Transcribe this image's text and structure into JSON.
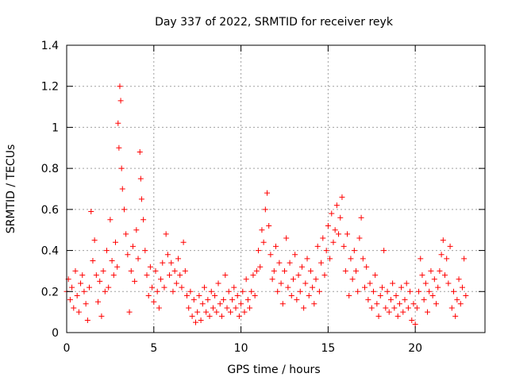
{
  "chart_data": {
    "type": "scatter",
    "title": "Day 337 of 2022, SRMTID for receiver reyk",
    "xlabel": "GPS time / hours",
    "ylabel": "SRMTID / TECUs",
    "xlim": [
      0,
      24
    ],
    "ylim": [
      0,
      1.4
    ],
    "xticks": [
      0,
      5,
      10,
      15,
      20
    ],
    "xtick_labels": [
      "0",
      "5",
      "10",
      "15",
      "20"
    ],
    "yticks": [
      0,
      0.2,
      0.4,
      0.6,
      0.8,
      1,
      1.2,
      1.4
    ],
    "ytick_labels": [
      "0",
      "0.2",
      "0.4",
      "0.6",
      "0.8",
      "1",
      "1.2",
      "1.4"
    ],
    "grid": true,
    "marker": "plus",
    "color": "#ff0000",
    "series": [
      {
        "name": "SRMTID",
        "points": [
          [
            0.0,
            0.2
          ],
          [
            0.1,
            0.26
          ],
          [
            0.2,
            0.16
          ],
          [
            0.3,
            0.22
          ],
          [
            0.4,
            0.12
          ],
          [
            0.5,
            0.3
          ],
          [
            0.6,
            0.18
          ],
          [
            0.7,
            0.1
          ],
          [
            0.8,
            0.24
          ],
          [
            0.9,
            0.28
          ],
          [
            1.0,
            0.2
          ],
          [
            1.1,
            0.14
          ],
          [
            1.2,
            0.06
          ],
          [
            1.3,
            0.22
          ],
          [
            1.4,
            0.59
          ],
          [
            1.5,
            0.35
          ],
          [
            1.6,
            0.45
          ],
          [
            1.7,
            0.28
          ],
          [
            1.8,
            0.15
          ],
          [
            1.9,
            0.25
          ],
          [
            2.0,
            0.08
          ],
          [
            2.1,
            0.3
          ],
          [
            2.2,
            0.2
          ],
          [
            2.3,
            0.4
          ],
          [
            2.4,
            0.22
          ],
          [
            2.5,
            0.55
          ],
          [
            2.6,
            0.35
          ],
          [
            2.7,
            0.28
          ],
          [
            2.8,
            0.44
          ],
          [
            2.9,
            0.32
          ],
          [
            2.95,
            1.02
          ],
          [
            3.0,
            0.9
          ],
          [
            3.05,
            1.2
          ],
          [
            3.1,
            1.13
          ],
          [
            3.15,
            0.8
          ],
          [
            3.2,
            0.7
          ],
          [
            3.3,
            0.6
          ],
          [
            3.4,
            0.48
          ],
          [
            3.5,
            0.38
          ],
          [
            3.6,
            0.1
          ],
          [
            3.7,
            0.3
          ],
          [
            3.8,
            0.42
          ],
          [
            3.9,
            0.25
          ],
          [
            4.0,
            0.5
          ],
          [
            4.1,
            0.36
          ],
          [
            4.2,
            0.88
          ],
          [
            4.25,
            0.75
          ],
          [
            4.3,
            0.65
          ],
          [
            4.4,
            0.55
          ],
          [
            4.5,
            0.4
          ],
          [
            4.6,
            0.28
          ],
          [
            4.7,
            0.18
          ],
          [
            4.8,
            0.32
          ],
          [
            4.9,
            0.22
          ],
          [
            5.0,
            0.15
          ],
          [
            5.1,
            0.3
          ],
          [
            5.2,
            0.2
          ],
          [
            5.3,
            0.12
          ],
          [
            5.4,
            0.26
          ],
          [
            5.5,
            0.34
          ],
          [
            5.6,
            0.22
          ],
          [
            5.7,
            0.48
          ],
          [
            5.8,
            0.38
          ],
          [
            5.9,
            0.28
          ],
          [
            6.0,
            0.34
          ],
          [
            6.1,
            0.2
          ],
          [
            6.2,
            0.3
          ],
          [
            6.3,
            0.24
          ],
          [
            6.4,
            0.36
          ],
          [
            6.5,
            0.28
          ],
          [
            6.6,
            0.22
          ],
          [
            6.7,
            0.44
          ],
          [
            6.8,
            0.3
          ],
          [
            6.9,
            0.18
          ],
          [
            7.0,
            0.12
          ],
          [
            7.1,
            0.2
          ],
          [
            7.2,
            0.08
          ],
          [
            7.3,
            0.16
          ],
          [
            7.4,
            0.05
          ],
          [
            7.5,
            0.1
          ],
          [
            7.6,
            0.18
          ],
          [
            7.7,
            0.06
          ],
          [
            7.8,
            0.14
          ],
          [
            7.9,
            0.22
          ],
          [
            8.0,
            0.1
          ],
          [
            8.1,
            0.16
          ],
          [
            8.2,
            0.08
          ],
          [
            8.3,
            0.2
          ],
          [
            8.4,
            0.12
          ],
          [
            8.5,
            0.18
          ],
          [
            8.6,
            0.1
          ],
          [
            8.7,
            0.24
          ],
          [
            8.8,
            0.14
          ],
          [
            8.9,
            0.08
          ],
          [
            9.0,
            0.16
          ],
          [
            9.1,
            0.28
          ],
          [
            9.2,
            0.12
          ],
          [
            9.3,
            0.2
          ],
          [
            9.4,
            0.1
          ],
          [
            9.5,
            0.16
          ],
          [
            9.6,
            0.22
          ],
          [
            9.7,
            0.12
          ],
          [
            9.8,
            0.18
          ],
          [
            9.9,
            0.08
          ],
          [
            10.0,
            0.14
          ],
          [
            10.1,
            0.2
          ],
          [
            10.2,
            0.1
          ],
          [
            10.3,
            0.26
          ],
          [
            10.4,
            0.16
          ],
          [
            10.5,
            0.12
          ],
          [
            10.6,
            0.2
          ],
          [
            10.7,
            0.28
          ],
          [
            10.8,
            0.18
          ],
          [
            10.9,
            0.3
          ],
          [
            11.0,
            0.4
          ],
          [
            11.1,
            0.32
          ],
          [
            11.2,
            0.5
          ],
          [
            11.3,
            0.44
          ],
          [
            11.4,
            0.6
          ],
          [
            11.5,
            0.68
          ],
          [
            11.6,
            0.52
          ],
          [
            11.7,
            0.38
          ],
          [
            11.8,
            0.26
          ],
          [
            11.9,
            0.3
          ],
          [
            12.0,
            0.42
          ],
          [
            12.1,
            0.2
          ],
          [
            12.2,
            0.34
          ],
          [
            12.3,
            0.24
          ],
          [
            12.4,
            0.14
          ],
          [
            12.5,
            0.3
          ],
          [
            12.6,
            0.46
          ],
          [
            12.7,
            0.22
          ],
          [
            12.8,
            0.34
          ],
          [
            12.9,
            0.18
          ],
          [
            13.0,
            0.26
          ],
          [
            13.1,
            0.38
          ],
          [
            13.2,
            0.16
          ],
          [
            13.3,
            0.28
          ],
          [
            13.4,
            0.2
          ],
          [
            13.5,
            0.32
          ],
          [
            13.6,
            0.12
          ],
          [
            13.7,
            0.24
          ],
          [
            13.8,
            0.36
          ],
          [
            13.9,
            0.18
          ],
          [
            14.0,
            0.3
          ],
          [
            14.1,
            0.22
          ],
          [
            14.2,
            0.14
          ],
          [
            14.3,
            0.26
          ],
          [
            14.4,
            0.42
          ],
          [
            14.5,
            0.2
          ],
          [
            14.6,
            0.34
          ],
          [
            14.7,
            0.46
          ],
          [
            14.8,
            0.28
          ],
          [
            14.9,
            0.4
          ],
          [
            15.0,
            0.52
          ],
          [
            15.1,
            0.36
          ],
          [
            15.2,
            0.58
          ],
          [
            15.3,
            0.44
          ],
          [
            15.4,
            0.5
          ],
          [
            15.5,
            0.62
          ],
          [
            15.6,
            0.48
          ],
          [
            15.7,
            0.56
          ],
          [
            15.8,
            0.66
          ],
          [
            15.9,
            0.42
          ],
          [
            16.0,
            0.3
          ],
          [
            16.1,
            0.48
          ],
          [
            16.2,
            0.18
          ],
          [
            16.3,
            0.36
          ],
          [
            16.4,
            0.26
          ],
          [
            16.5,
            0.4
          ],
          [
            16.6,
            0.3
          ],
          [
            16.7,
            0.2
          ],
          [
            16.8,
            0.46
          ],
          [
            16.9,
            0.56
          ],
          [
            17.0,
            0.36
          ],
          [
            17.1,
            0.22
          ],
          [
            17.2,
            0.32
          ],
          [
            17.3,
            0.16
          ],
          [
            17.4,
            0.24
          ],
          [
            17.5,
            0.12
          ],
          [
            17.6,
            0.2
          ],
          [
            17.7,
            0.28
          ],
          [
            17.8,
            0.14
          ],
          [
            17.9,
            0.08
          ],
          [
            18.0,
            0.18
          ],
          [
            18.1,
            0.22
          ],
          [
            18.2,
            0.4
          ],
          [
            18.3,
            0.12
          ],
          [
            18.4,
            0.2
          ],
          [
            18.5,
            0.1
          ],
          [
            18.6,
            0.16
          ],
          [
            18.7,
            0.24
          ],
          [
            18.8,
            0.12
          ],
          [
            18.9,
            0.18
          ],
          [
            19.0,
            0.08
          ],
          [
            19.1,
            0.14
          ],
          [
            19.2,
            0.22
          ],
          [
            19.3,
            0.1
          ],
          [
            19.4,
            0.16
          ],
          [
            19.5,
            0.24
          ],
          [
            19.6,
            0.12
          ],
          [
            19.7,
            0.2
          ],
          [
            19.8,
            0.06
          ],
          [
            19.9,
            0.14
          ],
          [
            20.0,
            0.04
          ],
          [
            20.1,
            0.12
          ],
          [
            20.2,
            0.2
          ],
          [
            20.3,
            0.36
          ],
          [
            20.4,
            0.28
          ],
          [
            20.5,
            0.16
          ],
          [
            20.6,
            0.24
          ],
          [
            20.7,
            0.1
          ],
          [
            20.8,
            0.2
          ],
          [
            20.9,
            0.3
          ],
          [
            21.0,
            0.18
          ],
          [
            21.1,
            0.26
          ],
          [
            21.2,
            0.14
          ],
          [
            21.3,
            0.22
          ],
          [
            21.4,
            0.3
          ],
          [
            21.5,
            0.38
          ],
          [
            21.6,
            0.45
          ],
          [
            21.7,
            0.28
          ],
          [
            21.8,
            0.36
          ],
          [
            21.9,
            0.24
          ],
          [
            22.0,
            0.42
          ],
          [
            22.1,
            0.12
          ],
          [
            22.2,
            0.2
          ],
          [
            22.3,
            0.08
          ],
          [
            22.4,
            0.16
          ],
          [
            22.5,
            0.26
          ],
          [
            22.6,
            0.14
          ],
          [
            22.7,
            0.22
          ],
          [
            22.8,
            0.36
          ],
          [
            22.9,
            0.18
          ]
        ]
      }
    ]
  }
}
